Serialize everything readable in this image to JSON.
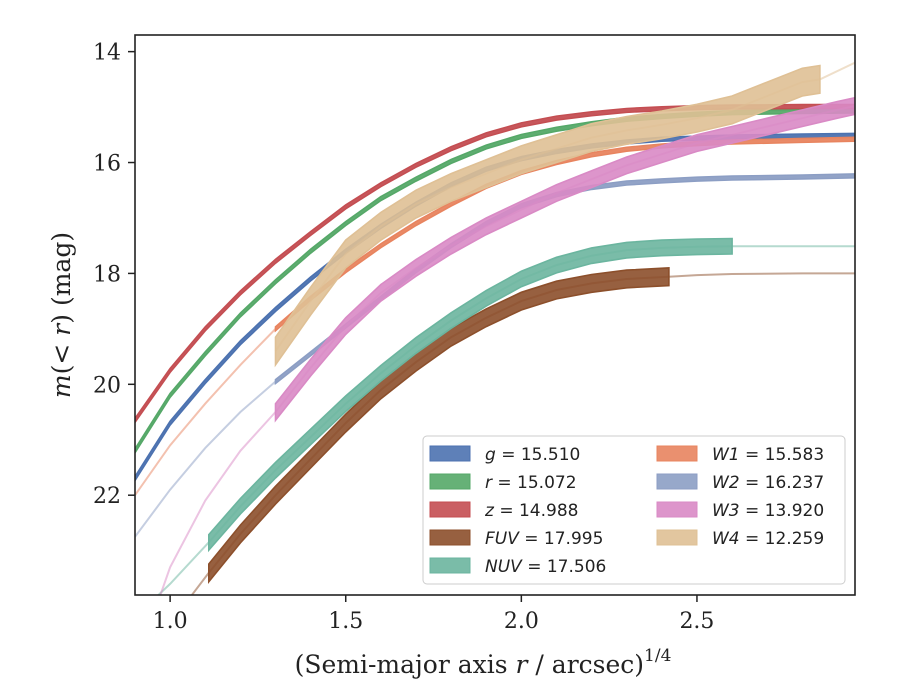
{
  "chart_data": {
    "type": "line",
    "title": "",
    "xlabel": "(Semi-major axis r / arcsec)",
    "xlabel_prefix": "(Semi-major axis ",
    "xlabel_var": "r",
    "xlabel_suffix": " / arcsec)",
    "xlabel_sup": "1/4",
    "ylabel": "m(< r) (mag)",
    "ylabel_parts": [
      "m",
      "(< ",
      "r",
      ") (mag)"
    ],
    "xlim": [
      0.9,
      2.95
    ],
    "ylim": [
      23.8,
      13.7
    ],
    "y_inverted": true,
    "grid": false,
    "legend_position": "lower-right",
    "x_ticks": [
      1.0,
      1.5,
      2.0,
      2.5
    ],
    "x_tick_labels": [
      "1.0",
      "1.5",
      "2.0",
      "2.5"
    ],
    "y_ticks": [
      14,
      16,
      18,
      20,
      22
    ],
    "y_tick_labels": [
      "14",
      "16",
      "18",
      "20",
      "22"
    ],
    "series": [
      {
        "name": "g",
        "label_var": "g",
        "label_value": "= 15.510",
        "color": "#4c72b0",
        "x": [
          0.9,
          1.0,
          1.1,
          1.2,
          1.3,
          1.4,
          1.5,
          1.6,
          1.7,
          1.8,
          1.9,
          2.0,
          2.1,
          2.2,
          2.3,
          2.4,
          2.5,
          2.6,
          2.8,
          2.95
        ],
        "y": [
          21.7,
          20.7,
          19.95,
          19.25,
          18.65,
          18.1,
          17.6,
          17.15,
          16.75,
          16.4,
          16.12,
          15.93,
          15.8,
          15.7,
          15.63,
          15.58,
          15.56,
          15.54,
          15.52,
          15.51
        ],
        "bright_x_max": 2.95,
        "band": 0.07
      },
      {
        "name": "r",
        "label_var": "r",
        "label_value": "= 15.072",
        "color": "#55a868",
        "x": [
          0.9,
          1.0,
          1.1,
          1.2,
          1.3,
          1.4,
          1.5,
          1.6,
          1.7,
          1.8,
          1.9,
          2.0,
          2.1,
          2.2,
          2.3,
          2.4,
          2.5,
          2.6,
          2.8,
          2.95
        ],
        "y": [
          21.2,
          20.2,
          19.45,
          18.75,
          18.15,
          17.6,
          17.1,
          16.65,
          16.3,
          15.98,
          15.72,
          15.53,
          15.4,
          15.3,
          15.22,
          15.17,
          15.13,
          15.1,
          15.08,
          15.07
        ],
        "bright_x_max": 2.95,
        "band": 0.07
      },
      {
        "name": "z",
        "label_var": "z",
        "label_value": "= 14.988",
        "color": "#c44e52",
        "x": [
          0.9,
          1.0,
          1.1,
          1.2,
          1.3,
          1.4,
          1.5,
          1.6,
          1.7,
          1.8,
          1.9,
          2.0,
          2.1,
          2.2,
          2.3,
          2.4,
          2.5,
          2.6,
          2.8,
          2.95
        ],
        "y": [
          20.65,
          19.75,
          19.0,
          18.35,
          17.78,
          17.28,
          16.8,
          16.4,
          16.05,
          15.75,
          15.5,
          15.32,
          15.2,
          15.12,
          15.06,
          15.03,
          15.01,
          15.0,
          14.99,
          14.99
        ],
        "bright_x_max": 2.95,
        "band": 0.07
      },
      {
        "name": "FUV",
        "label_var": "FUV",
        "label_value": "= 17.995",
        "color": "#8c4f2b",
        "x": [
          1.0,
          1.05,
          1.11,
          1.2,
          1.3,
          1.4,
          1.5,
          1.6,
          1.7,
          1.8,
          1.9,
          2.0,
          2.1,
          2.2,
          2.3,
          2.42,
          2.5,
          2.6,
          2.8,
          2.95
        ],
        "y": [
          24.2,
          23.9,
          23.4,
          22.7,
          22.0,
          21.35,
          20.7,
          20.1,
          19.6,
          19.15,
          18.8,
          18.5,
          18.3,
          18.18,
          18.1,
          18.06,
          18.03,
          18.01,
          18.0,
          18.0
        ],
        "bright_x_min": 1.11,
        "bright_x_max": 2.42,
        "band": 0.32
      },
      {
        "name": "NUV",
        "label_var": "NUV",
        "label_value": "= 17.506",
        "color": "#6bb59f",
        "x": [
          0.95,
          1.0,
          1.11,
          1.2,
          1.3,
          1.4,
          1.5,
          1.6,
          1.7,
          1.8,
          1.9,
          2.0,
          2.1,
          2.2,
          2.3,
          2.4,
          2.5,
          2.6,
          2.8,
          2.95
        ],
        "y": [
          23.9,
          23.6,
          22.85,
          22.2,
          21.55,
          20.95,
          20.35,
          19.8,
          19.3,
          18.85,
          18.45,
          18.1,
          17.85,
          17.68,
          17.58,
          17.54,
          17.52,
          17.51,
          17.51,
          17.51
        ],
        "bright_x_min": 1.11,
        "bright_x_max": 2.62,
        "band": 0.28
      },
      {
        "name": "W1",
        "label_var": "W1",
        "label_value": "= 15.583",
        "color": "#e8845f",
        "x": [
          0.9,
          1.0,
          1.1,
          1.2,
          1.3,
          1.4,
          1.5,
          1.6,
          1.7,
          1.8,
          1.9,
          2.0,
          2.1,
          2.2,
          2.3,
          2.4,
          2.5,
          2.6,
          2.8,
          2.95
        ],
        "y": [
          22.0,
          21.1,
          20.35,
          19.65,
          19.0,
          18.45,
          17.95,
          17.5,
          17.1,
          16.75,
          16.43,
          16.18,
          16.0,
          15.86,
          15.76,
          15.7,
          15.66,
          15.63,
          15.6,
          15.58
        ],
        "bright_x_min": 1.3,
        "bright_x_max": 2.95,
        "band": 0.07
      },
      {
        "name": "W2",
        "label_var": "W2",
        "label_value": "= 16.237",
        "color": "#8c9ec4",
        "x": [
          0.9,
          1.0,
          1.1,
          1.2,
          1.3,
          1.4,
          1.5,
          1.6,
          1.7,
          1.8,
          1.9,
          2.0,
          2.1,
          2.2,
          2.3,
          2.4,
          2.5,
          2.6,
          2.8,
          2.95
        ],
        "y": [
          22.75,
          21.9,
          21.15,
          20.5,
          19.95,
          19.45,
          18.95,
          18.45,
          17.95,
          17.5,
          17.1,
          16.78,
          16.58,
          16.45,
          16.37,
          16.33,
          16.3,
          16.28,
          16.26,
          16.24
        ],
        "bright_x_min": 1.3,
        "bright_x_max": 2.95,
        "band": 0.07
      },
      {
        "name": "W3",
        "label_var": "W3",
        "label_value": "= 13.920",
        "color": "#d98ac5",
        "x": [
          0.95,
          1.0,
          1.1,
          1.2,
          1.3,
          1.4,
          1.5,
          1.6,
          1.7,
          1.8,
          1.9,
          2.0,
          2.1,
          2.2,
          2.3,
          2.4,
          2.5,
          2.6,
          2.7,
          2.8,
          2.9,
          2.95
        ],
        "y": [
          24.2,
          23.3,
          22.1,
          21.2,
          20.5,
          19.7,
          18.95,
          18.35,
          17.9,
          17.5,
          17.15,
          16.85,
          16.55,
          16.3,
          16.05,
          15.85,
          15.65,
          15.5,
          15.35,
          15.2,
          15.05,
          14.98
        ],
        "bright_x_min": 1.3,
        "bright_x_max": 2.95,
        "band": 0.3
      },
      {
        "name": "W4",
        "label_var": "W4",
        "label_value": "= 12.259",
        "color": "#dfc095",
        "x": [
          1.3,
          1.4,
          1.5,
          1.6,
          1.7,
          1.8,
          1.9,
          2.0,
          2.1,
          2.2,
          2.3,
          2.4,
          2.5,
          2.6,
          2.7,
          2.8,
          2.85,
          2.95
        ],
        "y": [
          19.4,
          18.5,
          17.65,
          17.15,
          16.75,
          16.45,
          16.2,
          15.95,
          15.75,
          15.55,
          15.42,
          15.32,
          15.2,
          15.05,
          14.8,
          14.55,
          14.5,
          14.2
        ],
        "bright_x_min": 1.29,
        "bright_x_max": 2.85,
        "band": 0.5
      }
    ]
  }
}
